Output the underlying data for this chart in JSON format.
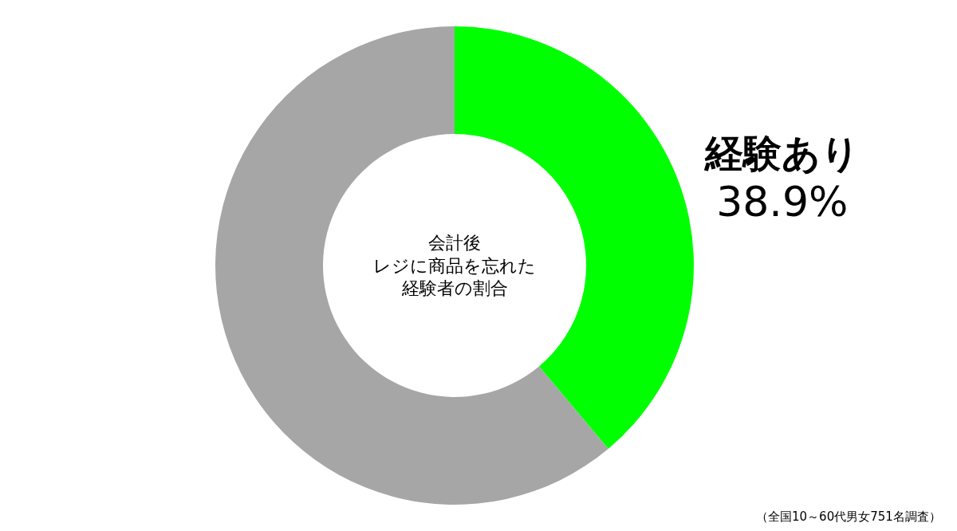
{
  "chart_data": {
    "type": "donut",
    "title": "会計後レジに商品を忘れた経験者の割合",
    "categories": [
      "経験あり",
      null
    ],
    "values": [
      38.9,
      61.1
    ],
    "colors": [
      "#00ff00",
      "#a6a6a6"
    ],
    "value_labels": [
      "38.9%",
      null
    ],
    "annotations": [
      "（全国10～60代男女751名調査）"
    ],
    "legend": false
  }
}
